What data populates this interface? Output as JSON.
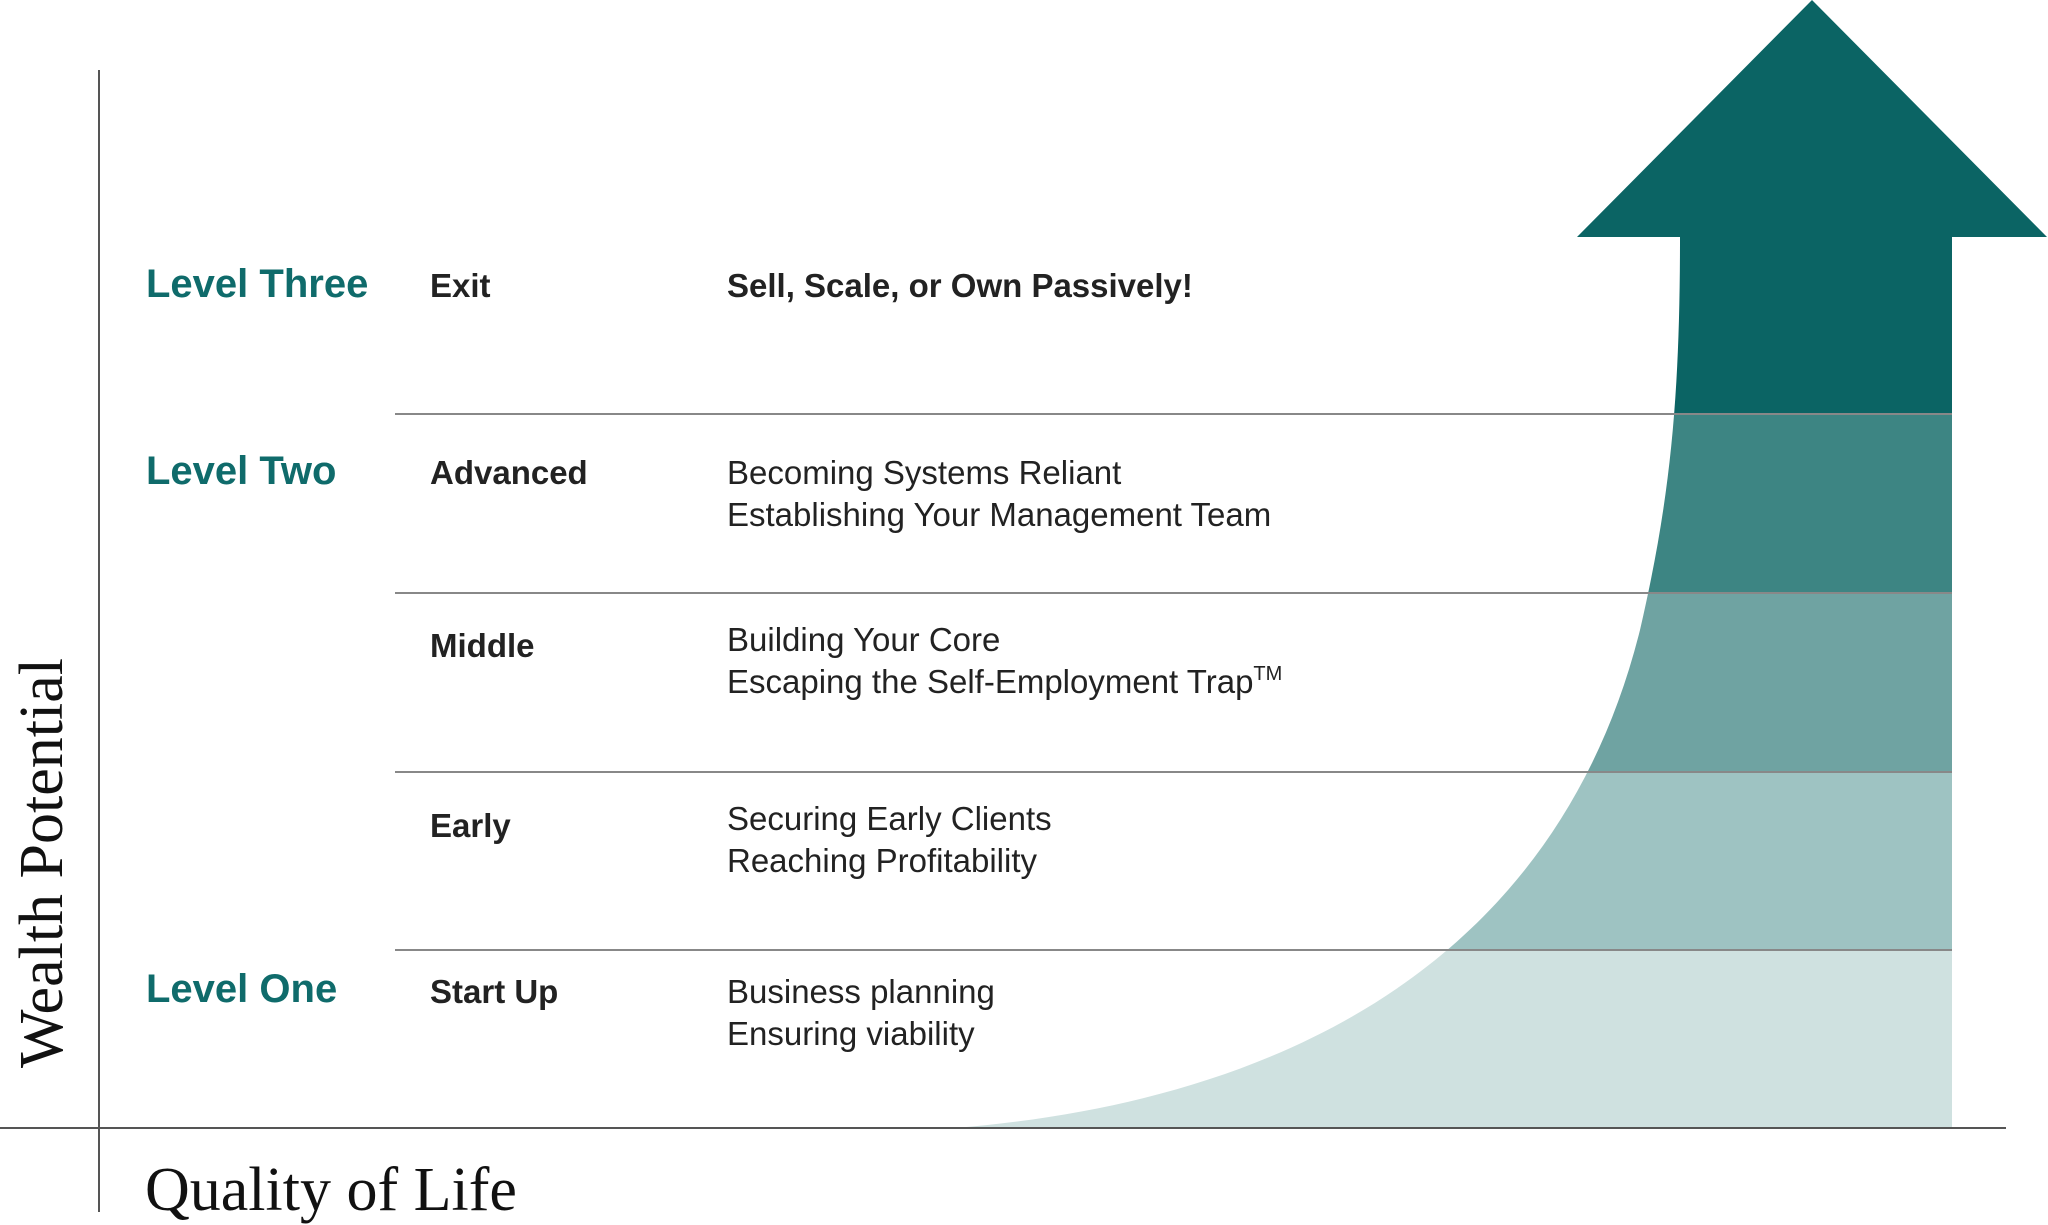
{
  "axes": {
    "y_label": "Wealth Potential",
    "x_label": "Quality of Life"
  },
  "levels": {
    "three": "Level Three",
    "two": "Level Two",
    "one": "Level One"
  },
  "stages": [
    {
      "name": "Exit",
      "lines": [
        "Sell, Scale, or Own Passively!"
      ]
    },
    {
      "name": "Advanced",
      "lines": [
        "Becoming Systems Reliant",
        "Establishing Your Management Team"
      ]
    },
    {
      "name": "Middle",
      "lines": [
        "Building Your Core",
        "Escaping the Self-Employment Trap"
      ],
      "trademark": "TM"
    },
    {
      "name": "Early",
      "lines": [
        "Securing Early Clients",
        "Reaching Profitability"
      ]
    },
    {
      "name": "Start Up",
      "lines": [
        "Business planning",
        "Ensuring viability"
      ]
    }
  ],
  "colors": {
    "level_text": "#0f6b6b",
    "band_exit": "#0b6464",
    "band_advanced": "#3d8583",
    "band_middle": "#6fa3a2",
    "band_early": "#9ec3c2",
    "band_startup": "#cfe1e0"
  }
}
